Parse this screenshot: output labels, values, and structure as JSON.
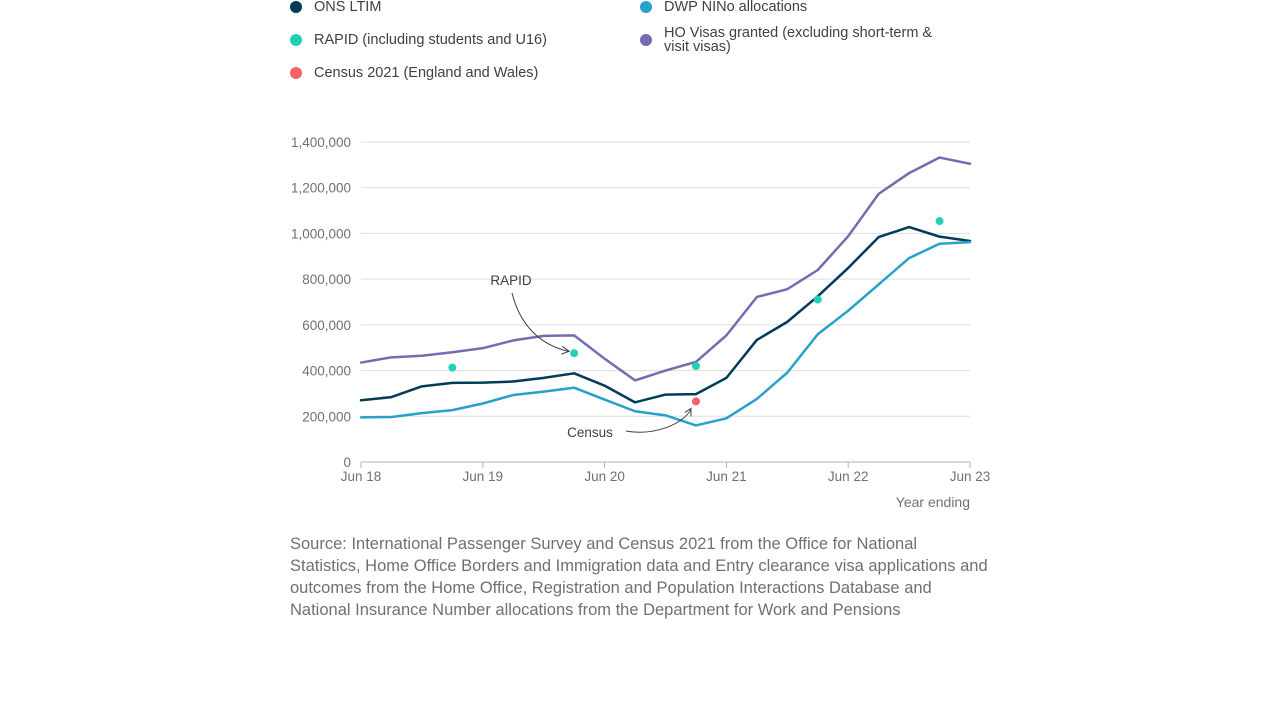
{
  "legend": [
    {
      "label": "ONS LTIM",
      "color": "#003c57"
    },
    {
      "label": "DWP NINo allocations",
      "color": "#27a0cc"
    },
    {
      "label": "RAPID (including students and U16)",
      "color": "#22d0b6"
    },
    {
      "label": "HO Visas granted (excluding short-term & visit visas)",
      "color": "#746cb1"
    },
    {
      "label": "Census 2021 (England and Wales)",
      "color": "#f66068"
    }
  ],
  "chart_data": {
    "type": "line",
    "x_tick_labels": [
      "Jun 18",
      "Jun 19",
      "Jun 20",
      "Jun 21",
      "Jun 22",
      "Jun 23"
    ],
    "y_tick_labels": [
      "0",
      "200,000",
      "400,000",
      "600,000",
      "800,000",
      "1,000,000",
      "1,200,000",
      "1,400,000"
    ],
    "y_ticks": [
      0,
      200000,
      400000,
      600000,
      800000,
      1000000,
      1200000,
      1400000
    ],
    "ylim": [
      0,
      1400000
    ],
    "xlabel": "Year ending",
    "grid": true,
    "legend_position": "top",
    "series": [
      {
        "name": "HO Visas granted (excluding short-term & visit visas)",
        "color": "#746cb1",
        "kind": "line",
        "x": [
          "Jun 18",
          "Sep 18",
          "Dec 18",
          "Mar 19",
          "Jun 19",
          "Sep 19",
          "Dec 19",
          "Mar 20",
          "Jun 20",
          "Sep 20",
          "Dec 20",
          "Mar 21",
          "Jun 21",
          "Sep 21",
          "Dec 21",
          "Mar 22",
          "Jun 22",
          "Sep 22",
          "Dec 22",
          "Mar 23",
          "Jun 23"
        ],
        "values": [
          435000,
          458000,
          465000,
          480000,
          498000,
          532000,
          552000,
          554000,
          452000,
          357000,
          400000,
          438000,
          554000,
          722000,
          756000,
          840000,
          988000,
          1173000,
          1264000,
          1332000,
          1305000
        ]
      },
      {
        "name": "ONS LTIM",
        "color": "#003c57",
        "kind": "line",
        "x": [
          "Jun 18",
          "Sep 18",
          "Dec 18",
          "Mar 19",
          "Jun 19",
          "Sep 19",
          "Dec 19",
          "Mar 20",
          "Jun 20",
          "Sep 20",
          "Dec 20",
          "Mar 21",
          "Jun 21",
          "Sep 21",
          "Dec 21",
          "Mar 22",
          "Jun 22",
          "Sep 22",
          "Dec 22",
          "Mar 23",
          "Jun 23"
        ],
        "values": [
          270000,
          284000,
          331000,
          346000,
          347000,
          352000,
          368000,
          388000,
          334000,
          261000,
          295000,
          297000,
          368000,
          534000,
          613000,
          725000,
          849000,
          984000,
          1028000,
          986000,
          967000
        ]
      },
      {
        "name": "DWP NINo allocations",
        "color": "#27a0cc",
        "kind": "line",
        "x": [
          "Jun 18",
          "Sep 18",
          "Dec 18",
          "Mar 19",
          "Jun 19",
          "Sep 19",
          "Dec 19",
          "Mar 20",
          "Jun 20",
          "Sep 20",
          "Dec 20",
          "Mar 21",
          "Jun 21",
          "Sep 21",
          "Dec 21",
          "Mar 22",
          "Jun 22",
          "Sep 22",
          "Dec 22",
          "Mar 23",
          "Jun 23"
        ],
        "values": [
          195000,
          197000,
          214000,
          227000,
          256000,
          293000,
          308000,
          325000,
          273000,
          222000,
          204000,
          160000,
          191000,
          276000,
          391000,
          559000,
          662000,
          777000,
          892000,
          955000,
          962000
        ]
      },
      {
        "name": "RAPID (including students and U16)",
        "color": "#22d0b6",
        "kind": "points",
        "x": [
          "Mar 19",
          "Mar 20",
          "Mar 21",
          "Mar 22",
          "Mar 23"
        ],
        "values": [
          413000,
          476000,
          420000,
          711000,
          1054000
        ]
      },
      {
        "name": "Census 2021 (England and Wales)",
        "color": "#f66068",
        "kind": "points",
        "x": [
          "Mar 21"
        ],
        "values": [
          265000
        ]
      }
    ],
    "annotations": [
      {
        "text": "RAPID",
        "target_series": "RAPID (including students and U16)",
        "target_x": "Mar 20"
      },
      {
        "text": "Census",
        "target_series": "Census 2021 (England and Wales)",
        "target_x": "Mar 21"
      }
    ]
  },
  "source": "Source: International Passenger Survey and Census 2021 from the Office for National Statistics, Home Office Borders and Immigration data and Entry clearance visa applications and outcomes from the Home Office, Registration and Population Interactions Database and National Insurance Number allocations from the Department for Work and Pensions"
}
